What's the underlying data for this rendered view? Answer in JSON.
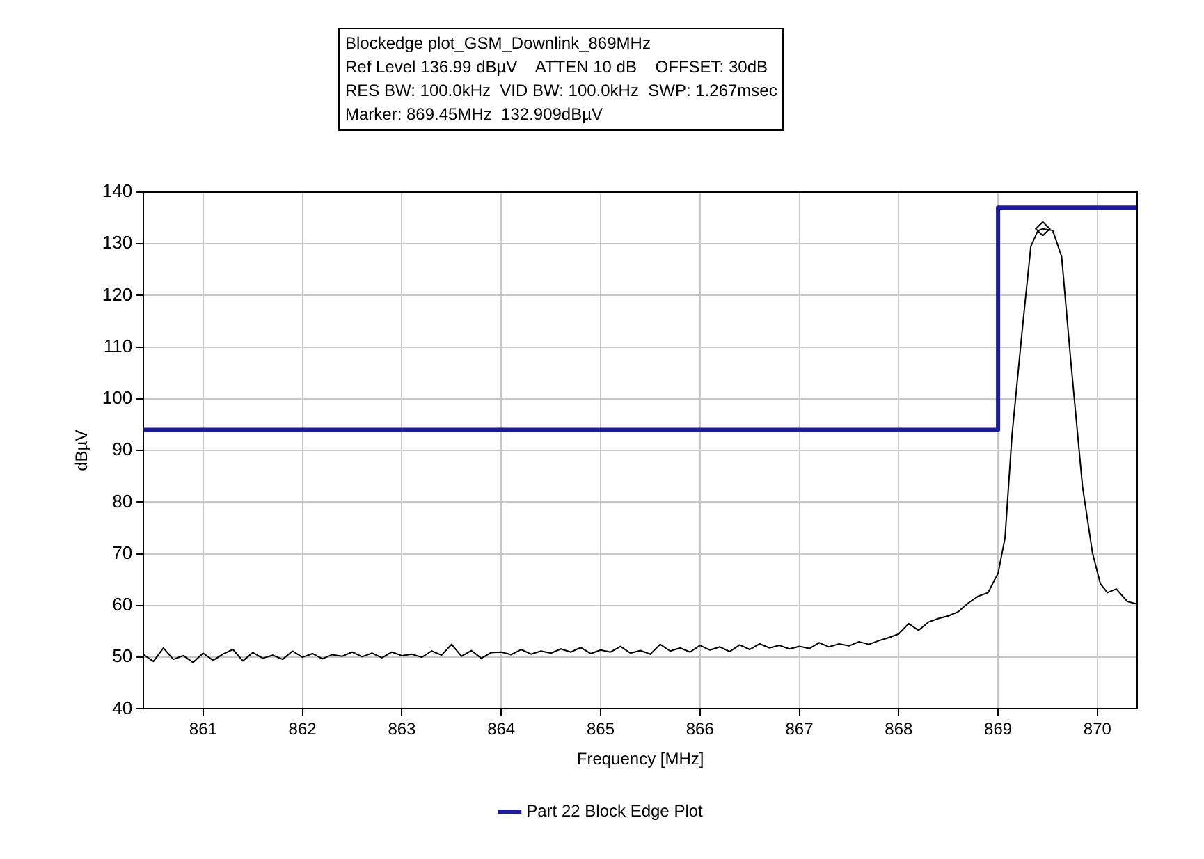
{
  "chart_data": {
    "type": "line",
    "title": "Blockedge plot_GSM_Downlink_869MHz",
    "annotations": [
      "Ref Level 136.99 dBµV    ATTEN 10 dB    OFFSET: 30dB",
      "RES BW: 100.0kHz  VID BW: 100.0kHz  SWP: 1.267msec",
      "Marker: 869.45MHz  132.909dBµV"
    ],
    "xlabel": "Frequency [MHz]",
    "ylabel": "dBµV",
    "xlim": [
      860.4,
      870.4
    ],
    "xticks": [
      861,
      862,
      863,
      864,
      865,
      866,
      867,
      868,
      869,
      870
    ],
    "ylim": [
      40,
      140
    ],
    "yticks": [
      40,
      50,
      60,
      70,
      80,
      90,
      100,
      110,
      120,
      130,
      140
    ],
    "grid": true,
    "legend": "bottom",
    "marker": "none",
    "line_style": "solid",
    "series": [
      {
        "type": "line",
        "color": "#000000",
        "x": [
          860.4,
          860.5,
          860.6,
          860.7,
          860.8,
          860.9,
          861.0,
          861.1,
          861.2,
          861.3,
          861.4,
          861.5,
          861.6,
          861.7,
          861.8,
          861.9,
          862.0,
          862.1,
          862.2,
          862.3,
          862.4,
          862.5,
          862.6,
          862.7,
          862.8,
          862.9,
          863.0,
          863.1,
          863.2,
          863.3,
          863.4,
          863.5,
          863.6,
          863.7,
          863.8,
          863.9,
          864.0,
          864.1,
          864.2,
          864.3,
          864.4,
          864.5,
          864.6,
          864.7,
          864.8,
          864.9,
          865.0,
          865.1,
          865.2,
          865.3,
          865.4,
          865.5,
          865.6,
          865.7,
          865.8,
          865.9,
          866.0,
          866.1,
          866.2,
          866.3,
          866.4,
          866.5,
          866.6,
          866.7,
          866.8,
          866.9,
          867.0,
          867.1,
          867.2,
          867.3,
          867.4,
          867.5,
          867.6,
          867.7,
          867.8,
          867.9,
          868.0,
          868.1,
          868.2,
          868.3,
          868.4,
          868.5,
          868.6,
          868.7,
          868.8,
          868.9,
          868.96,
          869.0,
          869.07,
          869.14,
          869.24,
          869.33,
          869.4,
          869.45,
          869.55,
          869.64,
          869.73,
          869.85,
          869.95,
          870.03,
          870.1,
          870.19,
          870.3,
          870.4
        ],
        "values": [
          50.5,
          49.2,
          51.8,
          49.6,
          50.3,
          49.0,
          50.8,
          49.4,
          50.6,
          51.5,
          49.3,
          50.9,
          49.8,
          50.4,
          49.6,
          51.2,
          50.0,
          50.7,
          49.7,
          50.5,
          50.2,
          51.0,
          50.1,
          50.8,
          49.9,
          51.0,
          50.3,
          50.6,
          50.0,
          51.2,
          50.4,
          52.5,
          50.2,
          51.3,
          49.8,
          50.9,
          51.0,
          50.5,
          51.5,
          50.6,
          51.2,
          50.8,
          51.6,
          51.0,
          51.9,
          50.7,
          51.4,
          51.0,
          52.1,
          50.8,
          51.3,
          50.6,
          52.5,
          51.2,
          51.8,
          51.0,
          52.3,
          51.4,
          52.0,
          51.1,
          52.4,
          51.5,
          52.6,
          51.8,
          52.3,
          51.6,
          52.1,
          51.7,
          52.8,
          52.0,
          52.6,
          52.2,
          53.0,
          52.5,
          53.2,
          53.8,
          54.5,
          56.5,
          55.2,
          56.8,
          57.5,
          58.0,
          58.8,
          60.5,
          61.8,
          62.5,
          64.8,
          66.2,
          73.1,
          92.9,
          112.7,
          129.5,
          132.5,
          132.9,
          132.6,
          127.5,
          107.7,
          83.0,
          70.2,
          64.2,
          62.5,
          63.2,
          60.8,
          60.3
        ]
      },
      {
        "type": "step",
        "name": "Part 22 Block Edge Plot",
        "color": "#1a1aa6",
        "x": [
          860.4,
          869,
          870.4
        ],
        "values": [
          94,
          137,
          137
        ]
      },
      {
        "type": "scatter",
        "color": "#000000",
        "marker": "diamond",
        "x": [
          869.45
        ],
        "values": [
          132.9
        ]
      }
    ]
  }
}
